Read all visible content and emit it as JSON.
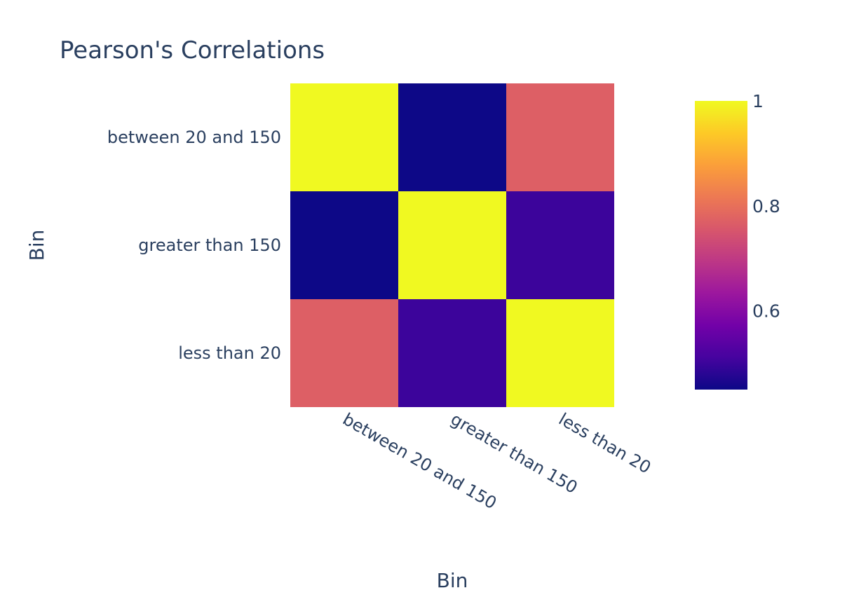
{
  "chart_data": {
    "type": "heatmap",
    "title": "Pearson's Correlations",
    "xlabel": "Bin",
    "ylabel": "Bin",
    "x_categories": [
      "between 20 and 150",
      "greater than 150",
      "less than 20"
    ],
    "y_categories": [
      "between 20 and 150",
      "greater than 150",
      "less than 20"
    ],
    "z": [
      [
        1.0,
        0.45,
        0.77
      ],
      [
        0.45,
        1.0,
        0.5
      ],
      [
        0.77,
        0.5,
        1.0
      ]
    ],
    "colorscale": "Plasma",
    "colorbar": {
      "range": [
        0.45,
        1.0
      ],
      "ticks": [
        0.6,
        0.8,
        1
      ],
      "tick_labels": [
        "0.6",
        "0.8",
        "1"
      ]
    },
    "colors": {
      "text": "#2a3f5f",
      "low": "#0d0887",
      "high": "#f0f921"
    }
  }
}
